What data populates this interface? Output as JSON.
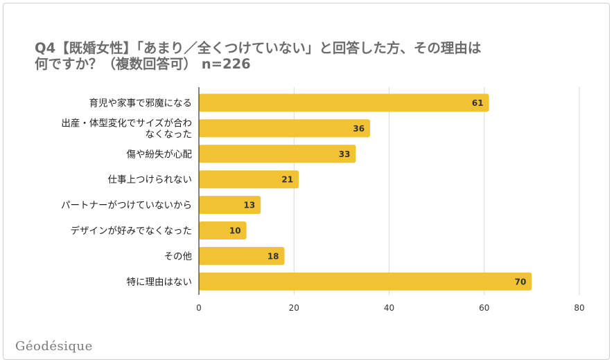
{
  "chart_data": {
    "type": "bar",
    "orientation": "horizontal",
    "title_lines": [
      "Q4【既婚女性】「あまり／全くつけていない」と回答した方、その理由は",
      "何ですか？（複数回答可） n=226"
    ],
    "categories": [
      [
        "育児や家事で邪魔になる"
      ],
      [
        "出産・体型変化でサイズが合わ",
        "なくなった"
      ],
      [
        "傷や紛失が心配"
      ],
      [
        "仕事上つけられない"
      ],
      [
        "パートナーがつけていないから"
      ],
      [
        "デザインが好みでなくなった"
      ],
      [
        "その他"
      ],
      [
        "特に理由はない"
      ]
    ],
    "values": [
      61,
      36,
      33,
      21,
      13,
      10,
      18,
      70
    ],
    "xlim": [
      0,
      80
    ],
    "xticks": [
      0,
      20,
      40,
      60,
      80
    ],
    "grid": true,
    "bar_color": "#f1c232",
    "grid_color": "#d9d9d9",
    "axis_color": "#333333"
  },
  "brand": "Géodésique"
}
